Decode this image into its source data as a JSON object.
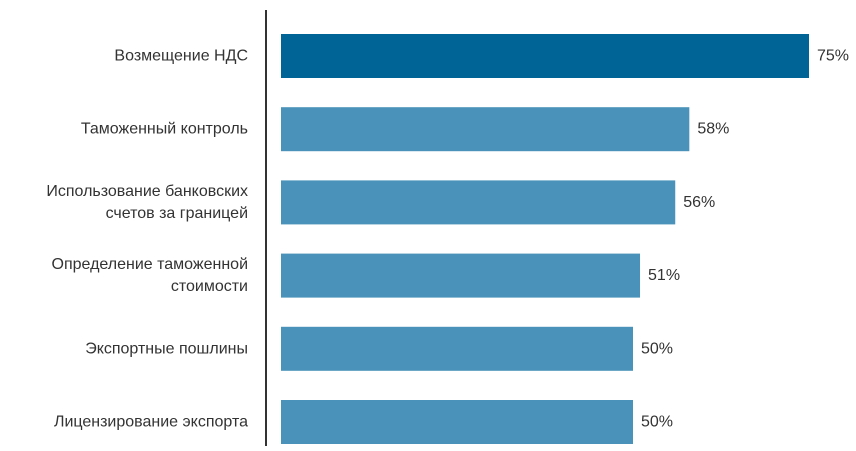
{
  "chart_data": {
    "type": "bar",
    "orientation": "horizontal",
    "categories": [
      "Возмещение НДС",
      "Таможенный контроль",
      "Использование банковских счетов за границей",
      "Определение таможенной стоимости",
      "Экспортные пошлины",
      "Лицензирование экспорта"
    ],
    "category_lines": [
      [
        "Возмещение НДС"
      ],
      [
        "Таможенный контроль"
      ],
      [
        "Использование банковских",
        "счетов за границей"
      ],
      [
        "Определение таможенной",
        "стоимости"
      ],
      [
        "Экспортные пошлины"
      ],
      [
        "Лицензирование экспорта"
      ]
    ],
    "values": [
      75,
      58,
      56,
      51,
      50,
      50
    ],
    "value_labels": [
      "75%",
      "58%",
      "56%",
      "51%",
      "50%",
      "50%"
    ],
    "highlight_index": 0,
    "xlim": [
      0,
      100
    ],
    "grid": false,
    "legend": "none"
  },
  "colors": {
    "highlight_bar": "#006496",
    "bar": "#4a92b9",
    "axis_line": "#333333",
    "text": "#333333"
  }
}
